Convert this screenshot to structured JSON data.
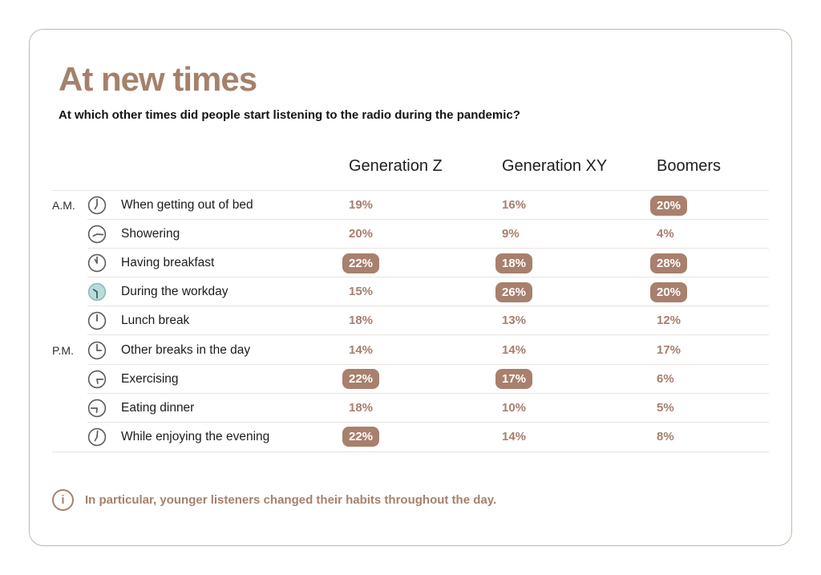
{
  "colors": {
    "accent": "#a5816c",
    "value-text": "#a87e6e",
    "badge-bg": "#a8806d",
    "badge-text": "#ffffff",
    "card-border": "#c9b5a8",
    "divider": "#e8e3df",
    "teal": "#b7dcdb",
    "teal-stroke": "#8fb9ba",
    "clock-stroke": "#5c5c5c",
    "clock-hands-filled": "#43555a"
  },
  "chart_data": {
    "type": "table",
    "title": "At new times",
    "subtitle": "At which other times did people start listening to the radio during the pandemic?",
    "unit": "%",
    "columns": [
      "Generation Z",
      "Generation XY",
      "Boomers"
    ],
    "rows": [
      {
        "period": "A.M.",
        "activity": "When getting out of bed",
        "icon": "clock-7am-icon",
        "clock": {
          "hour": 210,
          "minute": 0,
          "filled": false
        },
        "values": [
          19,
          16,
          20
        ],
        "highlighted": [
          false,
          false,
          true
        ]
      },
      {
        "period": "",
        "activity": "Showering",
        "icon": "clock-815am-icon",
        "clock": {
          "hour": 245,
          "minute": 95,
          "filled": false
        },
        "values": [
          20,
          9,
          4
        ],
        "highlighted": [
          false,
          false,
          false
        ]
      },
      {
        "period": "",
        "activity": "Having breakfast",
        "icon": "clock-9am-icon",
        "clock": {
          "hour": 330,
          "minute": 0,
          "filled": false
        },
        "values": [
          22,
          18,
          28
        ],
        "highlighted": [
          true,
          true,
          true
        ]
      },
      {
        "period": "",
        "activity": "During the workday",
        "icon": "clock-workday-icon",
        "clock": {
          "hour": 305,
          "minute": 180,
          "filled": true
        },
        "values": [
          15,
          26,
          20
        ],
        "highlighted": [
          false,
          true,
          true
        ]
      },
      {
        "period": "",
        "activity": "Lunch break",
        "icon": "clock-noon-icon",
        "clock": {
          "hour": 0,
          "minute": 0,
          "filled": false
        },
        "values": [
          18,
          13,
          12
        ],
        "highlighted": [
          false,
          false,
          false
        ]
      },
      {
        "period": "P.M.",
        "activity": "Other breaks in the day",
        "icon": "clock-3pm-icon",
        "clock": {
          "hour": 90,
          "minute": 0,
          "filled": false
        },
        "values": [
          14,
          14,
          17
        ],
        "highlighted": [
          false,
          false,
          false
        ]
      },
      {
        "period": "",
        "activity": "Exercising",
        "icon": "clock-5pm-icon",
        "clock": {
          "hour": 170,
          "minute": 90,
          "filled": false
        },
        "values": [
          22,
          17,
          6
        ],
        "highlighted": [
          true,
          true,
          false
        ]
      },
      {
        "period": "",
        "activity": "Eating dinner",
        "icon": "clock-645pm-icon",
        "clock": {
          "hour": 185,
          "minute": 270,
          "filled": false
        },
        "values": [
          18,
          10,
          5
        ],
        "highlighted": [
          false,
          false,
          false
        ]
      },
      {
        "period": "",
        "activity": "While enjoying the evening",
        "icon": "clock-evening-icon",
        "clock": {
          "hour": 210,
          "minute": 5,
          "filled": false
        },
        "values": [
          22,
          14,
          8
        ],
        "highlighted": [
          true,
          false,
          false
        ]
      }
    ]
  },
  "footer": {
    "note": "In particular, younger listeners changed their habits throughout the day.",
    "info_icon_glyph": "i"
  }
}
